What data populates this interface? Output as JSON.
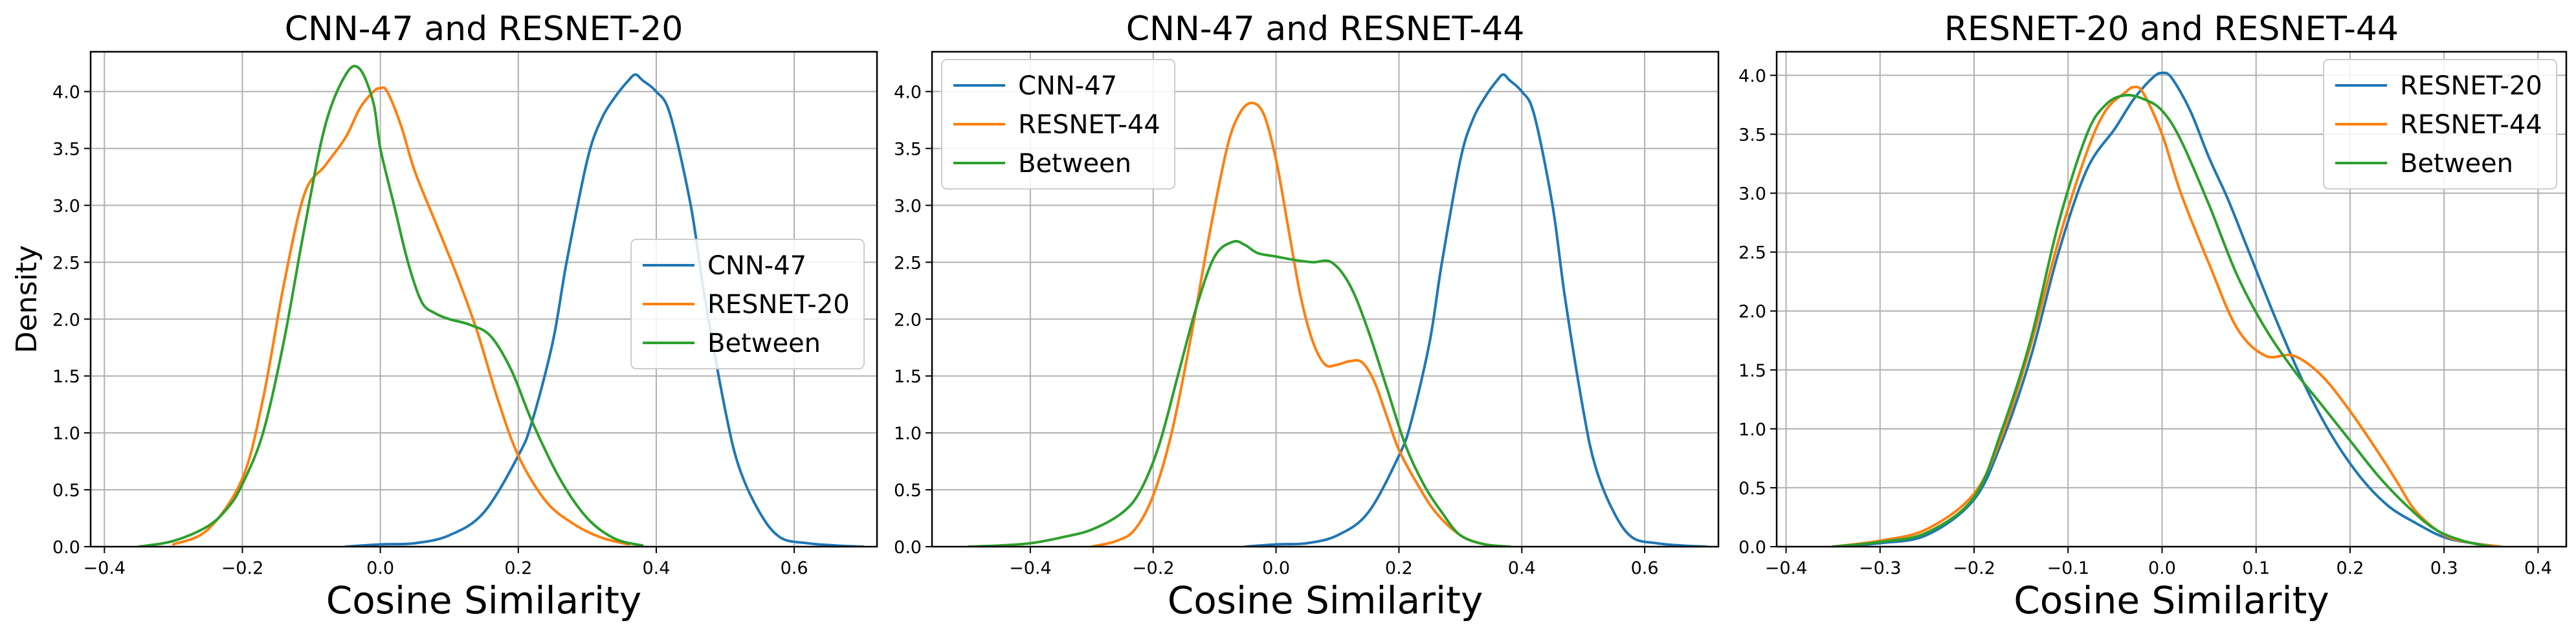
{
  "chart_data": [
    {
      "type": "line",
      "title": "CNN-47 and RESNET-20",
      "xlabel": "Cosine Similarity",
      "ylabel": "Density",
      "xlim": [
        -0.42,
        0.72
      ],
      "ylim": [
        0,
        4.35
      ],
      "xticks": [
        -0.4,
        -0.2,
        0.0,
        0.2,
        0.4,
        0.6
      ],
      "xtick_labels": [
        "−0.4",
        "−0.2",
        "0.0",
        "0.2",
        "0.4",
        "0.6"
      ],
      "yticks": [
        0.0,
        0.5,
        1.0,
        1.5,
        2.0,
        2.5,
        3.0,
        3.5,
        4.0
      ],
      "ytick_labels": [
        "0.0",
        "0.5",
        "1.0",
        "1.5",
        "2.0",
        "2.5",
        "3.0",
        "3.5",
        "4.0"
      ],
      "grid": true,
      "legend": "center-right",
      "series": [
        {
          "name": "CNN-47",
          "color": "#1f77b4",
          "x": [
            -0.05,
            0.0,
            0.05,
            0.1,
            0.15,
            0.2,
            0.22,
            0.25,
            0.27,
            0.3,
            0.32,
            0.34,
            0.36,
            0.37,
            0.38,
            0.4,
            0.42,
            0.45,
            0.47,
            0.5,
            0.52,
            0.55,
            0.58,
            0.62,
            0.66,
            0.7
          ],
          "y": [
            0.0,
            0.02,
            0.03,
            0.1,
            0.3,
            0.8,
            1.1,
            1.8,
            2.5,
            3.4,
            3.75,
            3.95,
            4.1,
            4.15,
            4.1,
            4.0,
            3.8,
            3.0,
            2.2,
            1.2,
            0.7,
            0.3,
            0.08,
            0.03,
            0.01,
            0.0
          ]
        },
        {
          "name": "RESNET-20",
          "color": "#ff7f0e",
          "x": [
            -0.3,
            -0.25,
            -0.2,
            -0.17,
            -0.14,
            -0.11,
            -0.08,
            -0.05,
            -0.03,
            -0.01,
            0.0,
            0.01,
            0.03,
            0.05,
            0.08,
            0.11,
            0.14,
            0.17,
            0.2,
            0.24,
            0.28,
            0.32,
            0.36
          ],
          "y": [
            0.02,
            0.15,
            0.6,
            1.3,
            2.3,
            3.1,
            3.35,
            3.6,
            3.85,
            4.0,
            4.03,
            4.0,
            3.7,
            3.3,
            2.85,
            2.4,
            1.9,
            1.3,
            0.8,
            0.4,
            0.2,
            0.08,
            0.02
          ]
        },
        {
          "name": "Between",
          "color": "#2ca02c",
          "x": [
            -0.35,
            -0.3,
            -0.25,
            -0.22,
            -0.2,
            -0.17,
            -0.14,
            -0.11,
            -0.08,
            -0.05,
            -0.03,
            -0.01,
            0.0,
            0.02,
            0.04,
            0.06,
            0.08,
            0.1,
            0.13,
            0.16,
            0.19,
            0.22,
            0.26,
            0.3,
            0.34,
            0.38
          ],
          "y": [
            0.0,
            0.05,
            0.18,
            0.35,
            0.55,
            1.0,
            1.8,
            2.8,
            3.7,
            4.15,
            4.2,
            3.9,
            3.5,
            3.0,
            2.5,
            2.15,
            2.05,
            2.0,
            1.95,
            1.85,
            1.55,
            1.1,
            0.6,
            0.25,
            0.07,
            0.01
          ]
        }
      ]
    },
    {
      "type": "line",
      "title": "CNN-47 and RESNET-44",
      "xlabel": "Cosine Similarity",
      "ylabel": "",
      "xlim": [
        -0.56,
        0.72
      ],
      "ylim": [
        0,
        4.35
      ],
      "xticks": [
        -0.4,
        -0.2,
        0.0,
        0.2,
        0.4,
        0.6
      ],
      "xtick_labels": [
        "−0.4",
        "−0.2",
        "0.0",
        "0.2",
        "0.4",
        "0.6"
      ],
      "yticks": [
        0.0,
        0.5,
        1.0,
        1.5,
        2.0,
        2.5,
        3.0,
        3.5,
        4.0
      ],
      "ytick_labels": [
        "0.0",
        "0.5",
        "1.0",
        "1.5",
        "2.0",
        "2.5",
        "3.0",
        "3.5",
        "4.0"
      ],
      "grid": true,
      "legend": "top-left",
      "series": [
        {
          "name": "CNN-47",
          "color": "#1f77b4",
          "x": [
            -0.05,
            0.0,
            0.05,
            0.1,
            0.15,
            0.2,
            0.22,
            0.25,
            0.27,
            0.3,
            0.32,
            0.34,
            0.36,
            0.37,
            0.38,
            0.4,
            0.42,
            0.45,
            0.47,
            0.5,
            0.52,
            0.55,
            0.58,
            0.62,
            0.66,
            0.7
          ],
          "y": [
            0.0,
            0.02,
            0.03,
            0.1,
            0.3,
            0.8,
            1.1,
            1.8,
            2.5,
            3.4,
            3.75,
            3.95,
            4.1,
            4.15,
            4.1,
            4.0,
            3.8,
            3.0,
            2.2,
            1.2,
            0.7,
            0.3,
            0.08,
            0.03,
            0.01,
            0.0
          ]
        },
        {
          "name": "RESNET-44",
          "color": "#ff7f0e",
          "x": [
            -0.3,
            -0.26,
            -0.23,
            -0.2,
            -0.17,
            -0.14,
            -0.11,
            -0.08,
            -0.06,
            -0.04,
            -0.02,
            0.0,
            0.02,
            0.04,
            0.06,
            0.08,
            0.1,
            0.12,
            0.14,
            0.16,
            0.18,
            0.2,
            0.23,
            0.26,
            0.3,
            0.34,
            0.38
          ],
          "y": [
            0.0,
            0.05,
            0.15,
            0.45,
            1.0,
            1.8,
            2.7,
            3.5,
            3.8,
            3.9,
            3.8,
            3.4,
            2.8,
            2.2,
            1.8,
            1.6,
            1.6,
            1.63,
            1.62,
            1.45,
            1.15,
            0.85,
            0.55,
            0.3,
            0.1,
            0.02,
            0.0
          ]
        },
        {
          "name": "Between",
          "color": "#2ca02c",
          "x": [
            -0.5,
            -0.45,
            -0.4,
            -0.35,
            -0.3,
            -0.25,
            -0.22,
            -0.19,
            -0.16,
            -0.13,
            -0.1,
            -0.07,
            -0.05,
            -0.03,
            0.0,
            0.03,
            0.06,
            0.09,
            0.12,
            0.15,
            0.18,
            0.21,
            0.24,
            0.27,
            0.3,
            0.34,
            0.38
          ],
          "y": [
            0.0,
            0.01,
            0.03,
            0.08,
            0.15,
            0.3,
            0.5,
            0.9,
            1.5,
            2.1,
            2.55,
            2.68,
            2.65,
            2.58,
            2.55,
            2.52,
            2.5,
            2.5,
            2.3,
            1.9,
            1.4,
            0.9,
            0.55,
            0.3,
            0.1,
            0.02,
            0.0
          ]
        }
      ]
    },
    {
      "type": "line",
      "title": "RESNET-20 and RESNET-44",
      "xlabel": "Cosine Similarity",
      "ylabel": "",
      "xlim": [
        -0.41,
        0.43
      ],
      "ylim": [
        0,
        4.2
      ],
      "xticks": [
        -0.4,
        -0.3,
        -0.2,
        -0.1,
        0.0,
        0.1,
        0.2,
        0.3,
        0.4
      ],
      "xtick_labels": [
        "−0.4",
        "−0.3",
        "−0.2",
        "−0.1",
        "0.0",
        "0.1",
        "0.2",
        "0.3",
        "0.4"
      ],
      "yticks": [
        0.0,
        0.5,
        1.0,
        1.5,
        2.0,
        2.5,
        3.0,
        3.5,
        4.0
      ],
      "ytick_labels": [
        "0.0",
        "0.5",
        "1.0",
        "1.5",
        "2.0",
        "2.5",
        "3.0",
        "3.5",
        "4.0"
      ],
      "grid": true,
      "legend": "top-right",
      "series": [
        {
          "name": "RESNET-20",
          "color": "#1f77b4",
          "x": [
            -0.35,
            -0.3,
            -0.25,
            -0.2,
            -0.17,
            -0.14,
            -0.11,
            -0.08,
            -0.05,
            -0.03,
            -0.01,
            0.0,
            0.01,
            0.03,
            0.05,
            0.07,
            0.09,
            0.12,
            0.15,
            0.18,
            0.21,
            0.24,
            0.27,
            0.3,
            0.33,
            0.36
          ],
          "y": [
            0.0,
            0.03,
            0.1,
            0.4,
            0.9,
            1.6,
            2.5,
            3.2,
            3.55,
            3.8,
            3.98,
            4.02,
            3.98,
            3.7,
            3.3,
            2.95,
            2.55,
            1.95,
            1.4,
            0.95,
            0.6,
            0.35,
            0.2,
            0.08,
            0.03,
            0.0
          ]
        },
        {
          "name": "RESNET-44",
          "color": "#ff7f0e",
          "x": [
            -0.35,
            -0.3,
            -0.25,
            -0.2,
            -0.17,
            -0.14,
            -0.11,
            -0.08,
            -0.06,
            -0.04,
            -0.03,
            -0.02,
            0.0,
            0.02,
            0.05,
            0.08,
            0.11,
            0.14,
            0.17,
            0.2,
            0.23,
            0.25,
            0.27,
            0.3,
            0.33,
            0.36
          ],
          "y": [
            0.0,
            0.05,
            0.15,
            0.45,
            0.95,
            1.7,
            2.6,
            3.35,
            3.7,
            3.85,
            3.9,
            3.85,
            3.5,
            3.0,
            2.4,
            1.85,
            1.62,
            1.62,
            1.45,
            1.15,
            0.8,
            0.55,
            0.3,
            0.1,
            0.03,
            0.0
          ]
        },
        {
          "name": "Between",
          "color": "#2ca02c",
          "x": [
            -0.35,
            -0.3,
            -0.25,
            -0.2,
            -0.17,
            -0.14,
            -0.11,
            -0.08,
            -0.06,
            -0.04,
            -0.02,
            0.0,
            0.02,
            0.05,
            0.08,
            0.11,
            0.14,
            0.17,
            0.2,
            0.23,
            0.26,
            0.29,
            0.32,
            0.35
          ],
          "y": [
            0.0,
            0.04,
            0.12,
            0.42,
            1.0,
            1.75,
            2.75,
            3.5,
            3.75,
            3.83,
            3.8,
            3.7,
            3.45,
            2.9,
            2.3,
            1.85,
            1.5,
            1.2,
            0.9,
            0.6,
            0.35,
            0.15,
            0.05,
            0.0
          ]
        }
      ]
    }
  ]
}
